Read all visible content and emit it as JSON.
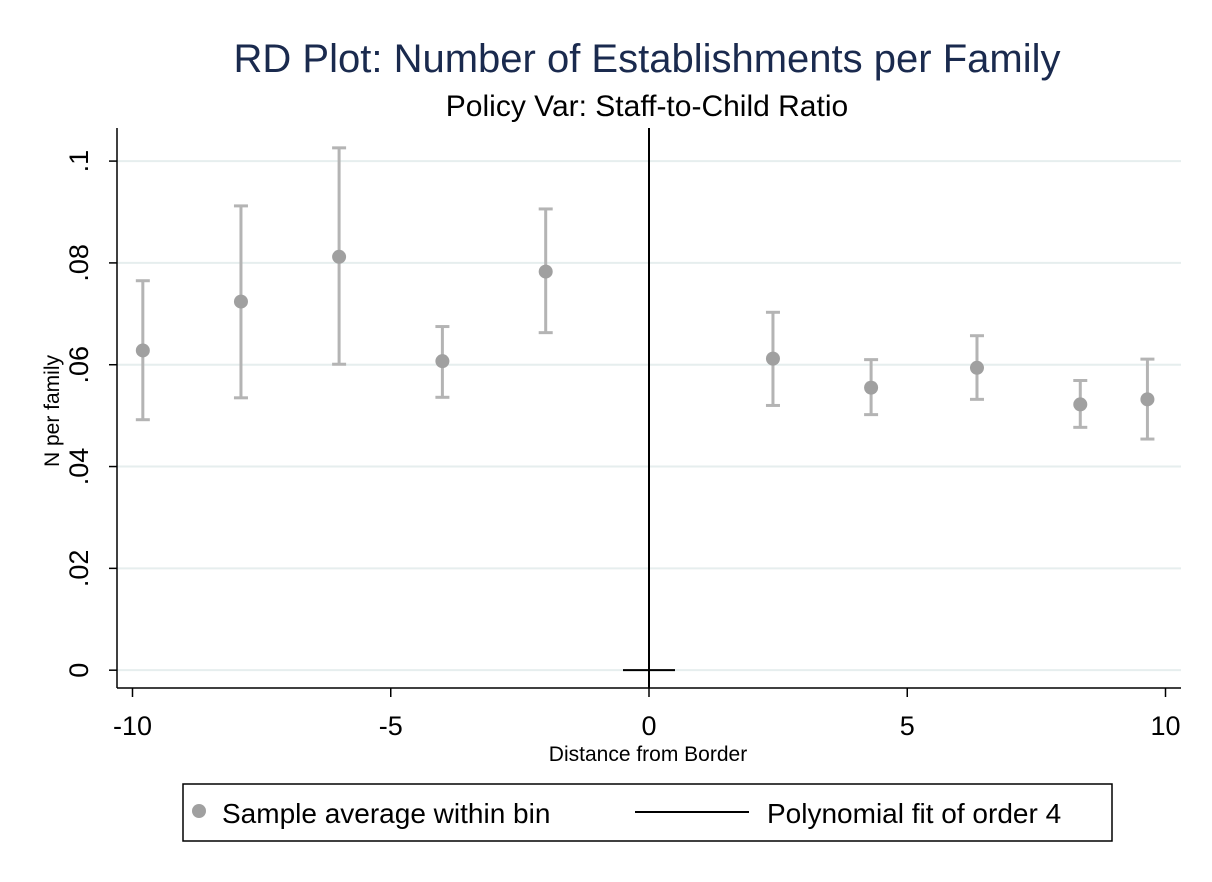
{
  "chart_data": {
    "type": "scatter",
    "title": "RD Plot: Number of Establishments per Family",
    "subtitle": "Policy Var: Staff-to-Child Ratio",
    "xlabel": "Distance from Border",
    "ylabel": "N per family",
    "xlim": [
      -10.3,
      10.3
    ],
    "ylim": [
      -0.0035,
      0.1065
    ],
    "x_ticks": [
      -10,
      -5,
      0,
      5,
      10
    ],
    "x_tick_labels": [
      "-10",
      "-5",
      "0",
      "5",
      "10"
    ],
    "y_ticks": [
      0,
      0.02,
      0.04,
      0.06,
      0.08,
      0.1
    ],
    "y_tick_labels": [
      "0",
      ".02",
      ".04",
      ".06",
      ".08",
      ".1"
    ],
    "grid": true,
    "cutoff": 0,
    "series": [
      {
        "name": "Sample average within bin",
        "points": [
          {
            "x": -9.8,
            "y": 0.0628,
            "lo": 0.0492,
            "hi": 0.0765
          },
          {
            "x": -7.9,
            "y": 0.0724,
            "lo": 0.0535,
            "hi": 0.0912
          },
          {
            "x": -6.0,
            "y": 0.0812,
            "lo": 0.0601,
            "hi": 0.1026
          },
          {
            "x": -4.0,
            "y": 0.0607,
            "lo": 0.0536,
            "hi": 0.0675
          },
          {
            "x": -2.0,
            "y": 0.0783,
            "lo": 0.0663,
            "hi": 0.0906
          },
          {
            "x": 2.4,
            "y": 0.0612,
            "lo": 0.052,
            "hi": 0.0703
          },
          {
            "x": 4.3,
            "y": 0.0555,
            "lo": 0.0502,
            "hi": 0.061
          },
          {
            "x": 6.35,
            "y": 0.0594,
            "lo": 0.0532,
            "hi": 0.0657
          },
          {
            "x": 8.35,
            "y": 0.0522,
            "lo": 0.0477,
            "hi": 0.0569
          },
          {
            "x": 9.65,
            "y": 0.0532,
            "lo": 0.0454,
            "hi": 0.0611
          }
        ]
      },
      {
        "name": "Polynomial fit of order 4",
        "points": []
      }
    ],
    "legend": [
      "Sample average within bin",
      "Polynomial fit of order 4"
    ],
    "colors": {
      "marker": "#a0a0a0",
      "errorbar": "#b4b4b4",
      "fit": "#000000",
      "grid": "#e6eeee",
      "title": "#1a2a4e"
    }
  }
}
